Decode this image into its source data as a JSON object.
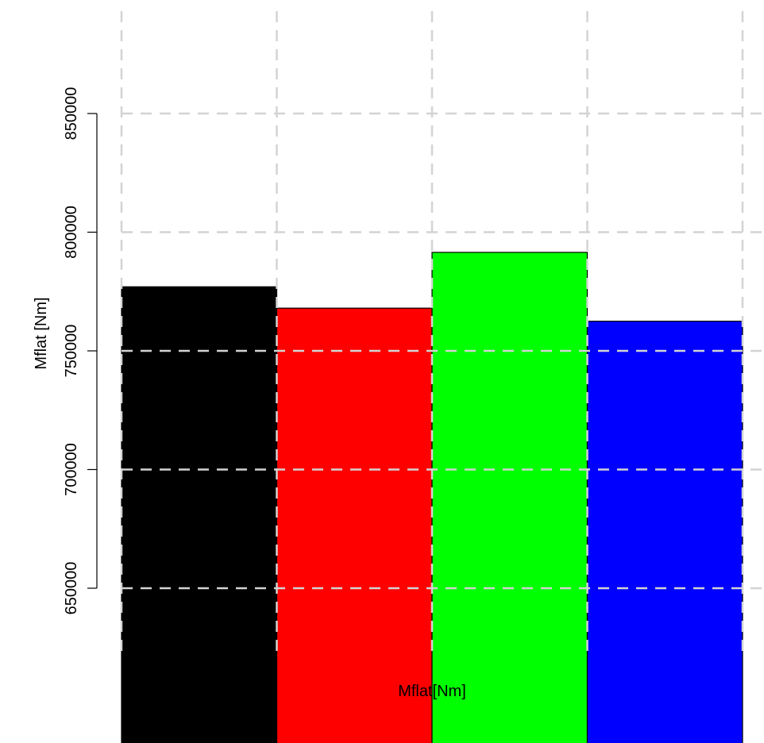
{
  "chart_data": {
    "type": "bar",
    "title": "",
    "xlabel": "Mflat[Nm]",
    "ylabel": "Mflat [Nm]",
    "categories": [
      "",
      "",
      "",
      ""
    ],
    "values": [
      777000,
      768000,
      791500,
      762500
    ],
    "colors": [
      "#000000",
      "#ff0000",
      "#00ff00",
      "#0000ff"
    ],
    "ylim": [
      600000,
      850000
    ],
    "yticks": [
      650000,
      700000,
      750000,
      800000,
      850000
    ],
    "ytick_labels": [
      "650000",
      "700000",
      "750000",
      "800000",
      "850000"
    ],
    "grid": true,
    "grid_color": "#d3d3d3",
    "legend": "none"
  }
}
